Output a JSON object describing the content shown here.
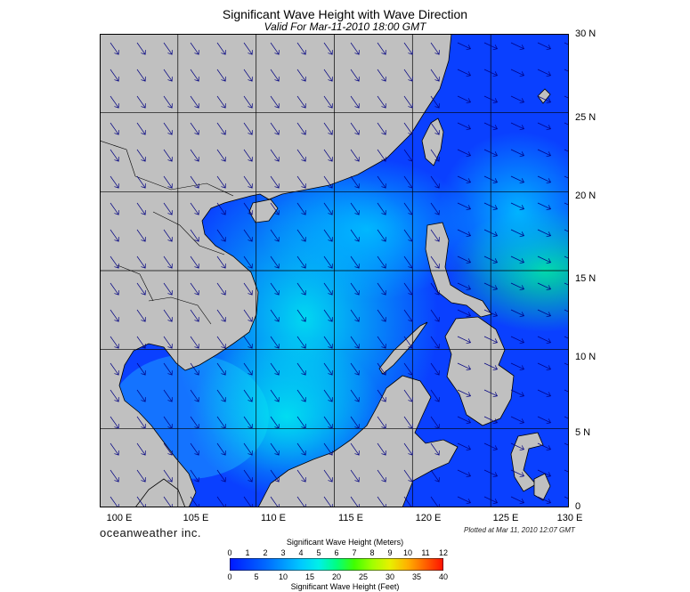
{
  "title": "Significant Wave Height with Wave Direction",
  "subtitle": "Valid For Mar-11-2010 18:00 GMT",
  "brand": "oceanweather inc.",
  "plotted": "Plotted at Mar 11, 2010 12:07 GMT",
  "lat_labels": [
    "30 N",
    "25 N",
    "20 N",
    "15 N",
    "10 N",
    "5 N",
    "0"
  ],
  "lon_labels": [
    "100 E",
    "105 E",
    "110 E",
    "115 E",
    "120 E",
    "125 E",
    "130 E"
  ],
  "colorbar": {
    "title_top": "Significant Wave Height (Meters)",
    "title_bottom": "Significant Wave Height (Feet)",
    "meters": [
      "0",
      "1",
      "2",
      "3",
      "4",
      "5",
      "6",
      "7",
      "8",
      "9",
      "10",
      "11",
      "12"
    ],
    "feet": [
      "0",
      "5",
      "10",
      "15",
      "20",
      "25",
      "30",
      "35",
      "40"
    ],
    "colors": [
      "#0018ff",
      "#0040ff",
      "#0068ff",
      "#0098ff",
      "#00c8ff",
      "#00f0e8",
      "#00ff80",
      "#40ff00",
      "#a0ff00",
      "#e8f000",
      "#ffb000",
      "#ff6000",
      "#ff1000"
    ]
  },
  "colors": {
    "land": "#c0c0c0",
    "grid": "#000000",
    "arrow": "#000080"
  }
}
